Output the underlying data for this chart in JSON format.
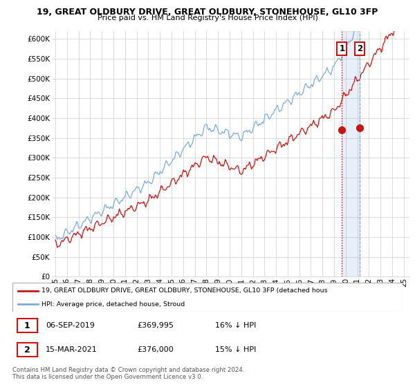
{
  "title1": "19, GREAT OLDBURY DRIVE, GREAT OLDBURY, STONEHOUSE, GL10 3FP",
  "title2": "Price paid vs. HM Land Registry's House Price Index (HPI)",
  "ylabel_ticks": [
    "£0",
    "£50K",
    "£100K",
    "£150K",
    "£200K",
    "£250K",
    "£300K",
    "£350K",
    "£400K",
    "£450K",
    "£500K",
    "£550K",
    "£600K"
  ],
  "ytick_values": [
    0,
    50000,
    100000,
    150000,
    200000,
    250000,
    300000,
    350000,
    400000,
    450000,
    500000,
    550000,
    600000
  ],
  "xmin": 1994.7,
  "xmax": 2025.5,
  "ymin": 0,
  "ymax": 620000,
  "hpi_color": "#7aabdc",
  "hpi_fill_color": "#c8dff2",
  "price_color": "#cc1111",
  "purchase1_date": 2019.68,
  "purchase1_price": 369995,
  "purchase2_date": 2021.21,
  "purchase2_price": 376000,
  "legend_label1": "19, GREAT OLDBURY DRIVE, GREAT OLDBURY, STONEHOUSE, GL10 3FP (detached hous",
  "legend_label2": "HPI: Average price, detached house, Stroud",
  "footer": "Contains HM Land Registry data © Crown copyright and database right 2024.\nThis data is licensed under the Open Government Licence v3.0.",
  "background_color": "#ffffff",
  "hpi_seed": 123,
  "price_seed": 456
}
